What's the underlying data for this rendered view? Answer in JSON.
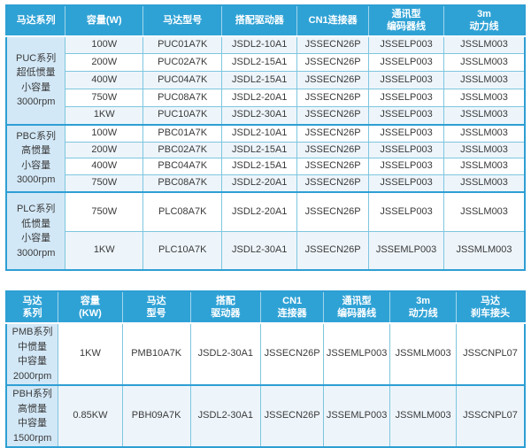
{
  "colors": {
    "header_bg": "#2FA2D5",
    "header_text": "#FFFFFF",
    "series_cell_bg": "#D3E8F7",
    "row_tint": "#EDF5FB",
    "cell_border": "#7EC6DF",
    "outer_border": "#2E9FD3",
    "text": "#3A3A3A"
  },
  "top_table": {
    "headers": [
      "马达系列",
      "容量(W)",
      "马达型号",
      "搭配驱动器",
      "CN1连接器",
      "通讯型\n编码器线",
      "3m\n动力线"
    ],
    "sections": [
      {
        "series": "PUC系列\n超低惯量\n小容量\n3000rpm",
        "rows": [
          [
            "100W",
            "PUC01A7K",
            "JSDL2-10A1",
            "JSSECN26P",
            "JSSELP003",
            "JSSLM003"
          ],
          [
            "200W",
            "PUC02A7K",
            "JSDL2-15A1",
            "JSSECN26P",
            "JSSELP003",
            "JSSLM003"
          ],
          [
            "400W",
            "PUC04A7K",
            "JSDL2-15A1",
            "JSSECN26P",
            "JSSELP003",
            "JSSLM003"
          ],
          [
            "750W",
            "PUC08A7K",
            "JSDL2-20A1",
            "JSSECN26P",
            "JSSELP003",
            "JSSLM003"
          ],
          [
            "1KW",
            "PUC10A7K",
            "JSDL2-30A1",
            "JSSECN26P",
            "JSSELP003",
            "JSSLM003"
          ]
        ]
      },
      {
        "series": "PBC系列\n高惯量\n小容量\n3000rpm",
        "rows": [
          [
            "100W",
            "PBC01A7K",
            "JSDL2-10A1",
            "JSSECN26P",
            "JSSELP003",
            "JSSLM003"
          ],
          [
            "200W",
            "PBC02A7K",
            "JSDL2-15A1",
            "JSSECN26P",
            "JSSELP003",
            "JSSLM003"
          ],
          [
            "400W",
            "PBC04A7K",
            "JSDL2-15A1",
            "JSSECN26P",
            "JSSELP003",
            "JSSLM003"
          ],
          [
            "750W",
            "PBC08A7K",
            "JSDL2-20A1",
            "JSSECN26P",
            "JSSELP003",
            "JSSLM003"
          ]
        ]
      },
      {
        "series": "PLC系列\n低惯量\n小容量\n3000rpm",
        "rows": [
          [
            "750W",
            "PLC08A7K",
            "JSDL2-20A1",
            "JSSECN26P",
            "JSSELP003",
            "JSSLM003"
          ],
          [
            "1KW",
            "PLC10A7K",
            "JSDL2-30A1",
            "JSSECN26P",
            "JSSEMLP003",
            "JSSMLM003"
          ]
        ]
      }
    ]
  },
  "bottom_table": {
    "headers": [
      "马达\n系列",
      "容量\n(KW)",
      "马达\n型号",
      "搭配\n驱动器",
      "CN1\n连接器",
      "通讯型\n编码器线",
      "3m\n动力线",
      "马达\n刹车接头"
    ],
    "sections": [
      {
        "series": "PMB系列\n中惯量\n中容量\n2000rpm",
        "rows": [
          [
            "1KW",
            "PMB10A7K",
            "JSDL2-30A1",
            "JSSECN26P",
            "JSSEMLP003",
            "JSSMLM003",
            "JSSCNPL07"
          ]
        ]
      },
      {
        "series": "PBH系列\n高惯量\n中容量\n1500rpm",
        "rows": [
          [
            "0.85KW",
            "PBH09A7K",
            "JSDL2-30A1",
            "JSSECN26P",
            "JSSEMLP003",
            "JSSMLM003",
            "JSSCNPL07"
          ]
        ]
      }
    ]
  }
}
